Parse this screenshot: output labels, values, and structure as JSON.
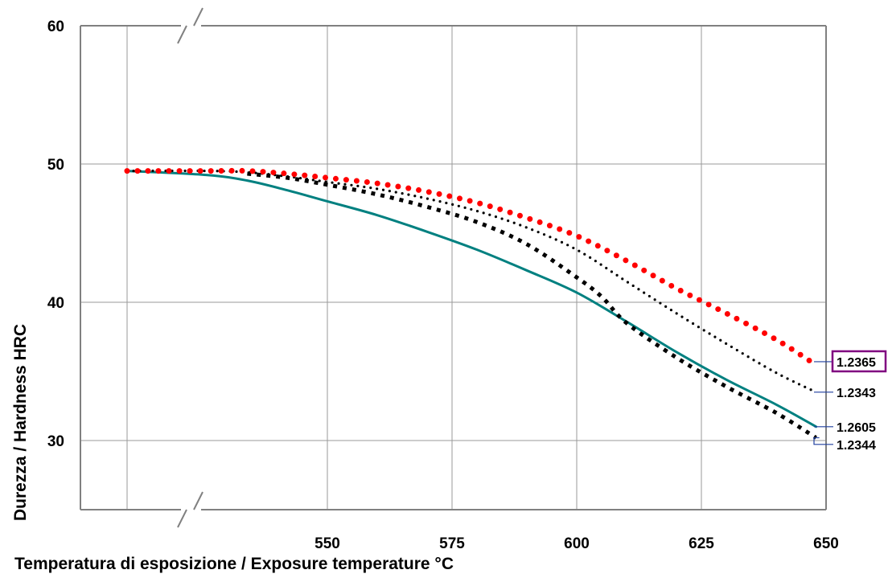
{
  "chart_data": {
    "type": "line",
    "title": "",
    "xlabel": "Temperatura di esposizione / Exposure temperature °C",
    "ylabel": "Durezza / Hardness HRC",
    "x_break": true,
    "xlim": [
      500,
      650
    ],
    "ylim": [
      25,
      60
    ],
    "x_ticks": [
      550,
      575,
      600,
      625,
      650
    ],
    "x_gridlines": [
      500,
      550,
      575,
      600,
      625,
      650
    ],
    "y_ticks": [
      30,
      40,
      50,
      60
    ],
    "grid": true,
    "series": [
      {
        "name": "1.2365",
        "color": "#ff0000",
        "style": "dotted-large",
        "boxed_label": true,
        "box_color": "#800080",
        "x": [
          500,
          520,
          530,
          540,
          550,
          560,
          570,
          580,
          590,
          600,
          610,
          620,
          630,
          640,
          647
        ],
        "y": [
          49.5,
          49.5,
          49.5,
          49.3,
          49.0,
          48.6,
          48.0,
          47.2,
          46.1,
          44.8,
          43.0,
          41.0,
          39.2,
          37.3,
          35.7
        ]
      },
      {
        "name": "1.2343",
        "color": "#000000",
        "style": "dotted-small",
        "x": [
          500,
          520,
          530,
          540,
          550,
          560,
          570,
          580,
          590,
          600,
          610,
          620,
          630,
          640,
          648
        ],
        "y": [
          49.5,
          49.5,
          49.4,
          49.1,
          48.7,
          48.2,
          47.5,
          46.6,
          45.4,
          43.8,
          41.5,
          39.2,
          37.0,
          34.9,
          33.5
        ]
      },
      {
        "name": "1.2605",
        "color": "#008080",
        "style": "solid",
        "x": [
          500,
          520,
          530,
          540,
          550,
          560,
          570,
          580,
          590,
          600,
          610,
          620,
          630,
          640,
          648
        ],
        "y": [
          49.5,
          49.2,
          48.8,
          48.1,
          47.3,
          46.3,
          45.1,
          43.8,
          42.3,
          40.7,
          38.6,
          36.4,
          34.4,
          32.6,
          31.0
        ]
      },
      {
        "name": "1.2344",
        "color": "#000000",
        "style": "square-dots",
        "x": [
          530,
          540,
          550,
          560,
          570,
          580,
          590,
          600,
          605,
          610,
          620,
          630,
          640,
          648
        ],
        "y": [
          49.3,
          49.0,
          48.5,
          47.8,
          46.9,
          45.8,
          44.2,
          41.8,
          40.4,
          38.5,
          36.0,
          33.9,
          32.0,
          30.2
        ]
      }
    ]
  }
}
